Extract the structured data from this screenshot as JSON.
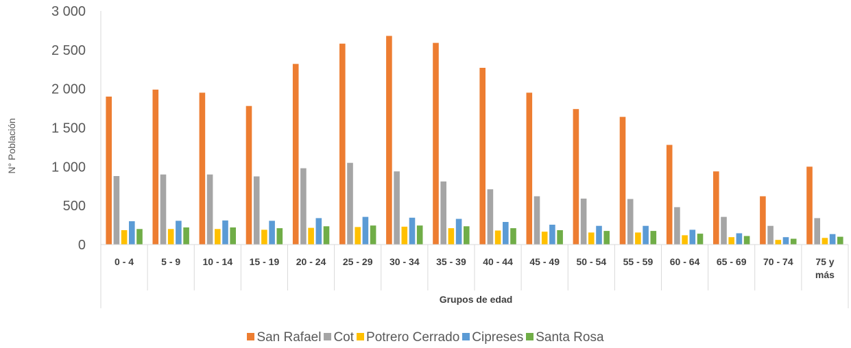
{
  "chart_data": {
    "type": "bar",
    "title": "",
    "xlabel": "Grupos de edad",
    "ylabel": "N° Población",
    "ylim": [
      0,
      3000
    ],
    "yticks": [
      "0",
      "500",
      "1 000",
      "1 500",
      "2 000",
      "2 500",
      "3 000"
    ],
    "ytick_values": [
      0,
      500,
      1000,
      1500,
      2000,
      2500,
      3000
    ],
    "grid": false,
    "legend_position": "bottom",
    "categories": [
      "0 - 4",
      "5 - 9",
      "10 - 14",
      "15 - 19",
      "20 - 24",
      "25 - 29",
      "30 - 34",
      "35 - 39",
      "40 - 44",
      "45 - 49",
      "50 - 54",
      "55 - 59",
      "60 - 64",
      "65 - 69",
      "70 - 74",
      "75 y más"
    ],
    "series": [
      {
        "name": "San Rafael",
        "color": "#ED7D31",
        "values": [
          1900,
          1990,
          1950,
          1780,
          2320,
          2580,
          2680,
          2590,
          2270,
          1950,
          1740,
          1640,
          1280,
          940,
          620,
          1000
        ]
      },
      {
        "name": "Cot",
        "color": "#A5A5A5",
        "values": [
          880,
          900,
          900,
          875,
          980,
          1050,
          940,
          810,
          710,
          620,
          590,
          585,
          480,
          355,
          240,
          340
        ]
      },
      {
        "name": "Potrero Cerrado",
        "color": "#FFC000",
        "values": [
          185,
          200,
          200,
          190,
          215,
          225,
          230,
          210,
          180,
          165,
          155,
          155,
          120,
          95,
          60,
          85
        ]
      },
      {
        "name": "Cipreses",
        "color": "#5B9BD5",
        "values": [
          300,
          305,
          310,
          305,
          340,
          355,
          345,
          330,
          290,
          255,
          240,
          240,
          190,
          145,
          95,
          135
        ]
      },
      {
        "name": "Santa Rosa",
        "color": "#70AD47",
        "values": [
          200,
          220,
          220,
          210,
          235,
          245,
          245,
          235,
          210,
          185,
          175,
          175,
          140,
          110,
          75,
          100
        ]
      }
    ]
  }
}
